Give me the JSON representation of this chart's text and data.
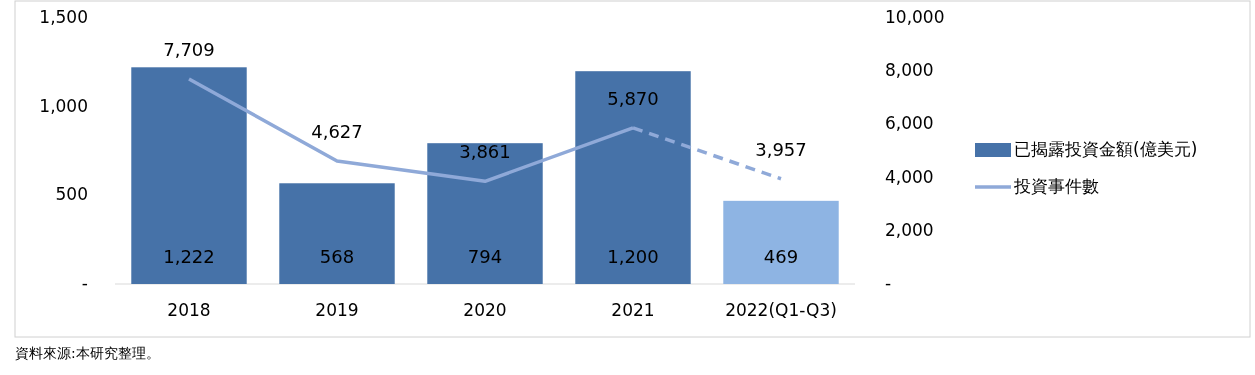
{
  "chart_data": {
    "type": "bar",
    "categories": [
      "2018",
      "2019",
      "2020",
      "2021",
      "2022(Q1-Q3)"
    ],
    "series": [
      {
        "name": "已揭露投資金額(億美元)",
        "colors": [
          "#4672a8",
          "#4672a8",
          "#4672a8",
          "#4672a8",
          "#8eb4e3"
        ],
        "values": [
          1222,
          568,
          794,
          1200,
          469
        ],
        "value_labels": [
          "1,222",
          "568",
          "794",
          "1,200",
          "469"
        ]
      },
      {
        "type": "line",
        "axis": "y2",
        "name": "投資事件數",
        "color": "#8fa9d8",
        "line_style": "solid",
        "values": [
          7709,
          4627,
          3861,
          5870,
          null
        ],
        "value_labels": [
          "7,709",
          "4,627",
          "3,861",
          "5,870",
          null
        ]
      },
      {
        "type": "line",
        "axis": "y2",
        "color": "#8fa9d8",
        "line_style": "dashed",
        "values": [
          null,
          null,
          null,
          5870,
          3957
        ],
        "value_labels": [
          null,
          null,
          null,
          null,
          "3,957"
        ]
      }
    ],
    "ylim": [
      0,
      1500
    ],
    "yticks": [
      {
        "value": 0,
        "label": "-"
      },
      500,
      {
        "value": 1000,
        "label": "1,000"
      },
      {
        "value": 1500,
        "label": "1,500"
      }
    ],
    "y2lim": [
      0,
      10000
    ],
    "y2ticks": [
      {
        "value": 0,
        "label": "-"
      },
      {
        "value": 2000,
        "label": "2,000"
      },
      {
        "value": 4000,
        "label": "4,000"
      },
      {
        "value": 6000,
        "label": "6,000"
      },
      {
        "value": 8000,
        "label": "8,000"
      },
      {
        "value": 10000,
        "label": "10,000"
      }
    ],
    "legend": "right",
    "annotations": [
      "資料來源:本研究整理。"
    ]
  }
}
